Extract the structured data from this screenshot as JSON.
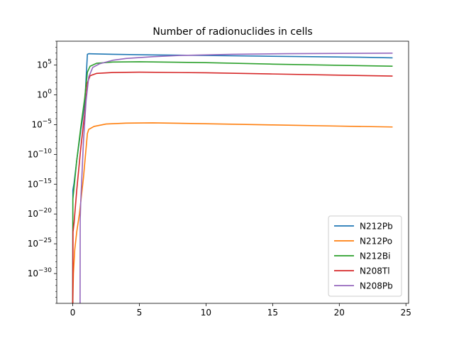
{
  "chart_data": {
    "type": "line",
    "title": "Number of radionuclides in cells",
    "xlabel": "",
    "ylabel": "",
    "xlim": [
      -1.2,
      25.2
    ],
    "ylim_log10": [
      -35,
      9
    ],
    "yscale": "log",
    "grid": false,
    "legend_position": "lower-right",
    "x_ticks": [
      0,
      5,
      10,
      15,
      20,
      25
    ],
    "x_tick_labels": [
      "0",
      "5",
      "10",
      "15",
      "20",
      "25"
    ],
    "y_ticks_log10": [
      5,
      0,
      -5,
      -10,
      -15,
      -20,
      -25,
      -30
    ],
    "y_tick_labels": [
      {
        "base": "10",
        "exp": "5"
      },
      {
        "base": "10",
        "exp": "0"
      },
      {
        "base": "10",
        "exp": "−5"
      },
      {
        "base": "10",
        "exp": "−10"
      },
      {
        "base": "10",
        "exp": "−15"
      },
      {
        "base": "10",
        "exp": "−20"
      },
      {
        "base": "10",
        "exp": "−25"
      },
      {
        "base": "10",
        "exp": "−30"
      }
    ],
    "series": [
      {
        "name": "N212Pb",
        "color": "#1f77b4",
        "x": [
          0,
          0.01,
          0.1,
          0.3,
          0.6,
          0.9,
          1.1,
          1.2,
          3,
          6,
          10,
          14,
          18,
          22,
          24
        ],
        "log10_y": [
          -35,
          -16,
          -14.8,
          -11,
          -6,
          -1.5,
          6.8,
          6.9,
          6.8,
          6.7,
          6.6,
          6.5,
          6.4,
          6.3,
          6.2
        ]
      },
      {
        "name": "N212Po",
        "color": "#ff7f0e",
        "x": [
          0,
          0.05,
          0.15,
          0.3,
          0.5,
          0.8,
          1.0,
          1.1,
          1.2,
          1.6,
          2.5,
          4,
          6,
          10,
          15,
          20,
          24
        ],
        "log10_y": [
          -35,
          -30,
          -26,
          -23,
          -20,
          -14,
          -9,
          -6.5,
          -5.8,
          -5.3,
          -4.9,
          -4.75,
          -4.7,
          -4.85,
          -5.05,
          -5.25,
          -5.4
        ]
      },
      {
        "name": "N212Bi",
        "color": "#2ca02c",
        "x": [
          0,
          0.01,
          0.1,
          0.3,
          0.6,
          0.9,
          1.1,
          1.3,
          1.8,
          3,
          5,
          10,
          15,
          20,
          24
        ],
        "log10_y": [
          -35,
          -17.5,
          -15.5,
          -11,
          -5.5,
          -0.5,
          3.8,
          4.8,
          5.3,
          5.5,
          5.55,
          5.4,
          5.15,
          4.95,
          4.8
        ]
      },
      {
        "name": "N208Tl",
        "color": "#d62728",
        "x": [
          0,
          0.02,
          0.1,
          0.3,
          0.6,
          0.9,
          1.1,
          1.3,
          1.8,
          3,
          5,
          10,
          15,
          20,
          24
        ],
        "log10_y": [
          -35,
          -23,
          -21.5,
          -16,
          -9,
          -3,
          2,
          3.2,
          3.6,
          3.75,
          3.8,
          3.7,
          3.5,
          3.3,
          3.15
        ]
      },
      {
        "name": "N208Pb",
        "color": "#9467bd",
        "x": [
          0.55,
          0.56,
          0.6,
          0.8,
          1.0,
          1.2,
          1.5,
          2,
          3,
          4,
          6,
          8,
          12,
          16,
          20,
          24
        ],
        "log10_y": [
          -35,
          -21,
          -18,
          -8,
          -1,
          3,
          4.6,
          5.2,
          5.8,
          6.1,
          6.4,
          6.6,
          6.8,
          6.9,
          6.95,
          7.0
        ]
      }
    ]
  }
}
